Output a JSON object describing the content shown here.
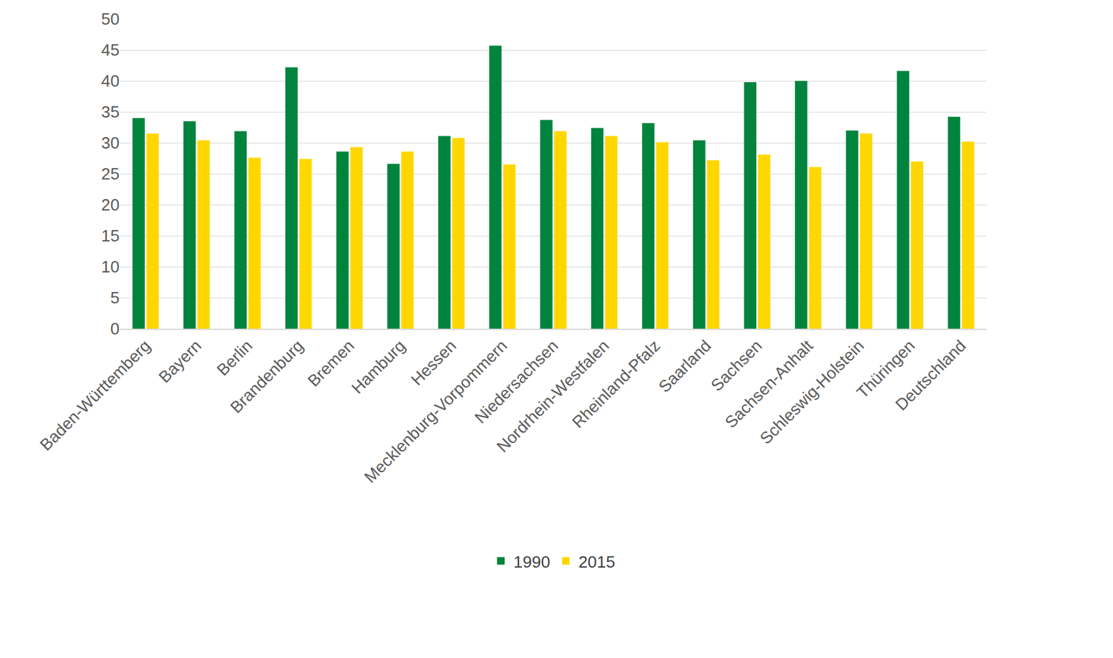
{
  "chart_data": {
    "type": "bar",
    "categories": [
      "Baden-Württemberg",
      "Bayern",
      "Berlin",
      "Brandenburg",
      "Bremen",
      "Hamburg",
      "Hessen",
      "Mecklenburg-Vorpommern",
      "Niedersachsen",
      "Nordrhein-Westfalen",
      "Rheinland-Pfalz",
      "Saarland",
      "Sachsen",
      "Sachsen-Anhalt",
      "Schleswig-Holstein",
      "Thüringen",
      "Deutschland"
    ],
    "series": [
      {
        "name": "1990",
        "color": "#00843d",
        "values": [
          34.0,
          33.5,
          31.9,
          42.2,
          28.6,
          26.6,
          31.1,
          45.7,
          33.7,
          32.4,
          33.2,
          30.4,
          39.8,
          40.0,
          32.0,
          41.6,
          34.2
        ]
      },
      {
        "name": "2015",
        "color": "#ffd700",
        "values": [
          31.5,
          30.4,
          27.6,
          27.4,
          29.3,
          28.6,
          30.8,
          26.5,
          31.9,
          31.1,
          30.1,
          27.2,
          28.1,
          26.1,
          31.5,
          27.0,
          30.2
        ]
      }
    ],
    "ylim": [
      0,
      50
    ],
    "yticks": [
      0,
      5,
      10,
      15,
      20,
      25,
      30,
      35,
      40,
      45,
      50
    ],
    "grid": true,
    "legend": "bottom"
  }
}
